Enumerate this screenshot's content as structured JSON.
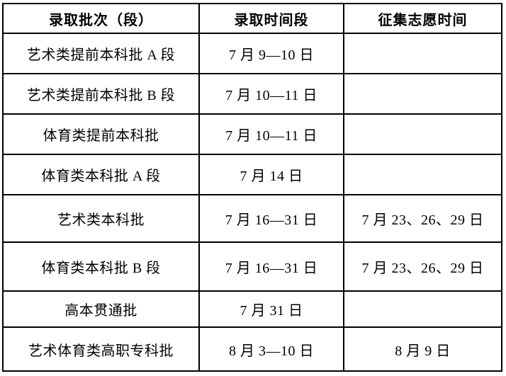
{
  "table": {
    "title_semantic": "admission-batch-schedule",
    "colors": {
      "text": "#000000",
      "border": "#000000",
      "background": "#ffffff"
    },
    "headers": [
      "录取批次（段）",
      "录取时间段",
      "征集志愿时间"
    ],
    "rows": [
      {
        "batch": "艺术类提前本科批 A 段",
        "time": "7 月 9—10 日",
        "volunteer": ""
      },
      {
        "batch": "艺术类提前本科批 B 段",
        "time": "7 月 10—11 日",
        "volunteer": ""
      },
      {
        "batch": "体育类提前本科批",
        "time": "7 月 10—11 日",
        "volunteer": ""
      },
      {
        "batch": "体育类本科批 A 段",
        "time": "7 月 14 日",
        "volunteer": ""
      },
      {
        "batch": "艺术类本科批",
        "time": "7 月 16—31 日",
        "volunteer": "7 月 23、26、29 日"
      },
      {
        "batch": "体育类本科批 B 段",
        "time": "7 月 16—31 日",
        "volunteer": "7 月 23、26、29 日"
      },
      {
        "batch": "高本贯通批",
        "time": "7 月 31 日",
        "volunteer": ""
      },
      {
        "batch": "艺术体育类高职专科批",
        "time": "8 月 3—10 日",
        "volunteer": "8 月 9 日"
      }
    ]
  }
}
